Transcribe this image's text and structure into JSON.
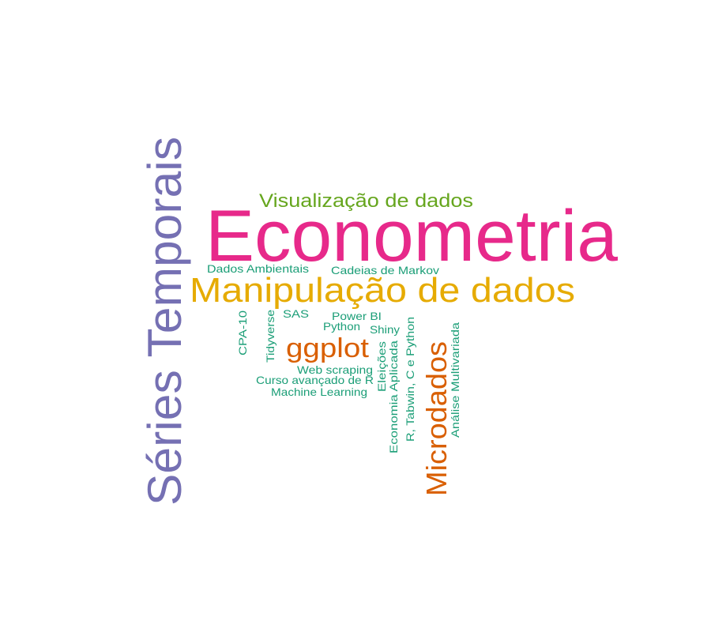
{
  "chart_data": {
    "type": "wordcloud",
    "title": "",
    "palette": {
      "magenta": "#E7298A",
      "purple": "#7570B3",
      "gold": "#E6AB02",
      "orange": "#D95F02",
      "green": "#66A61E",
      "teal": "#1B9E77"
    },
    "words": [
      {
        "text": "Econometria",
        "weight": 100,
        "color": "#E7298A"
      },
      {
        "text": "Séries Temporais",
        "weight": 72,
        "color": "#7570B3"
      },
      {
        "text": "Manipulação de dados",
        "weight": 56,
        "color": "#E6AB02"
      },
      {
        "text": "Microdados",
        "weight": 44,
        "color": "#D95F02"
      },
      {
        "text": "ggplot",
        "weight": 40,
        "color": "#D95F02"
      },
      {
        "text": "Visualização de dados",
        "weight": 34,
        "color": "#66A61E"
      },
      {
        "text": "Dados Ambientais",
        "weight": 20,
        "color": "#1B9E77"
      },
      {
        "text": "Cadeias de Markov",
        "weight": 20,
        "color": "#1B9E77"
      },
      {
        "text": "SAS",
        "weight": 20,
        "color": "#1B9E77"
      },
      {
        "text": "Power BI",
        "weight": 20,
        "color": "#1B9E77"
      },
      {
        "text": "Python",
        "weight": 20,
        "color": "#1B9E77"
      },
      {
        "text": "Shiny",
        "weight": 20,
        "color": "#1B9E77"
      },
      {
        "text": "CPA-10",
        "weight": 20,
        "color": "#1B9E77"
      },
      {
        "text": "Tidyverse",
        "weight": 20,
        "color": "#1B9E77"
      },
      {
        "text": "Web scraping",
        "weight": 20,
        "color": "#1B9E77"
      },
      {
        "text": "Curso avançado de R",
        "weight": 20,
        "color": "#1B9E77"
      },
      {
        "text": "Machine Learning",
        "weight": 20,
        "color": "#1B9E77"
      },
      {
        "text": "Eleições",
        "weight": 20,
        "color": "#1B9E77"
      },
      {
        "text": "Economia Aplicada",
        "weight": 20,
        "color": "#1B9E77"
      },
      {
        "text": "R, Tabwin, C e Python",
        "weight": 20,
        "color": "#1B9E77"
      },
      {
        "text": "Análise Multivariada",
        "weight": 20,
        "color": "#1B9E77"
      }
    ]
  }
}
